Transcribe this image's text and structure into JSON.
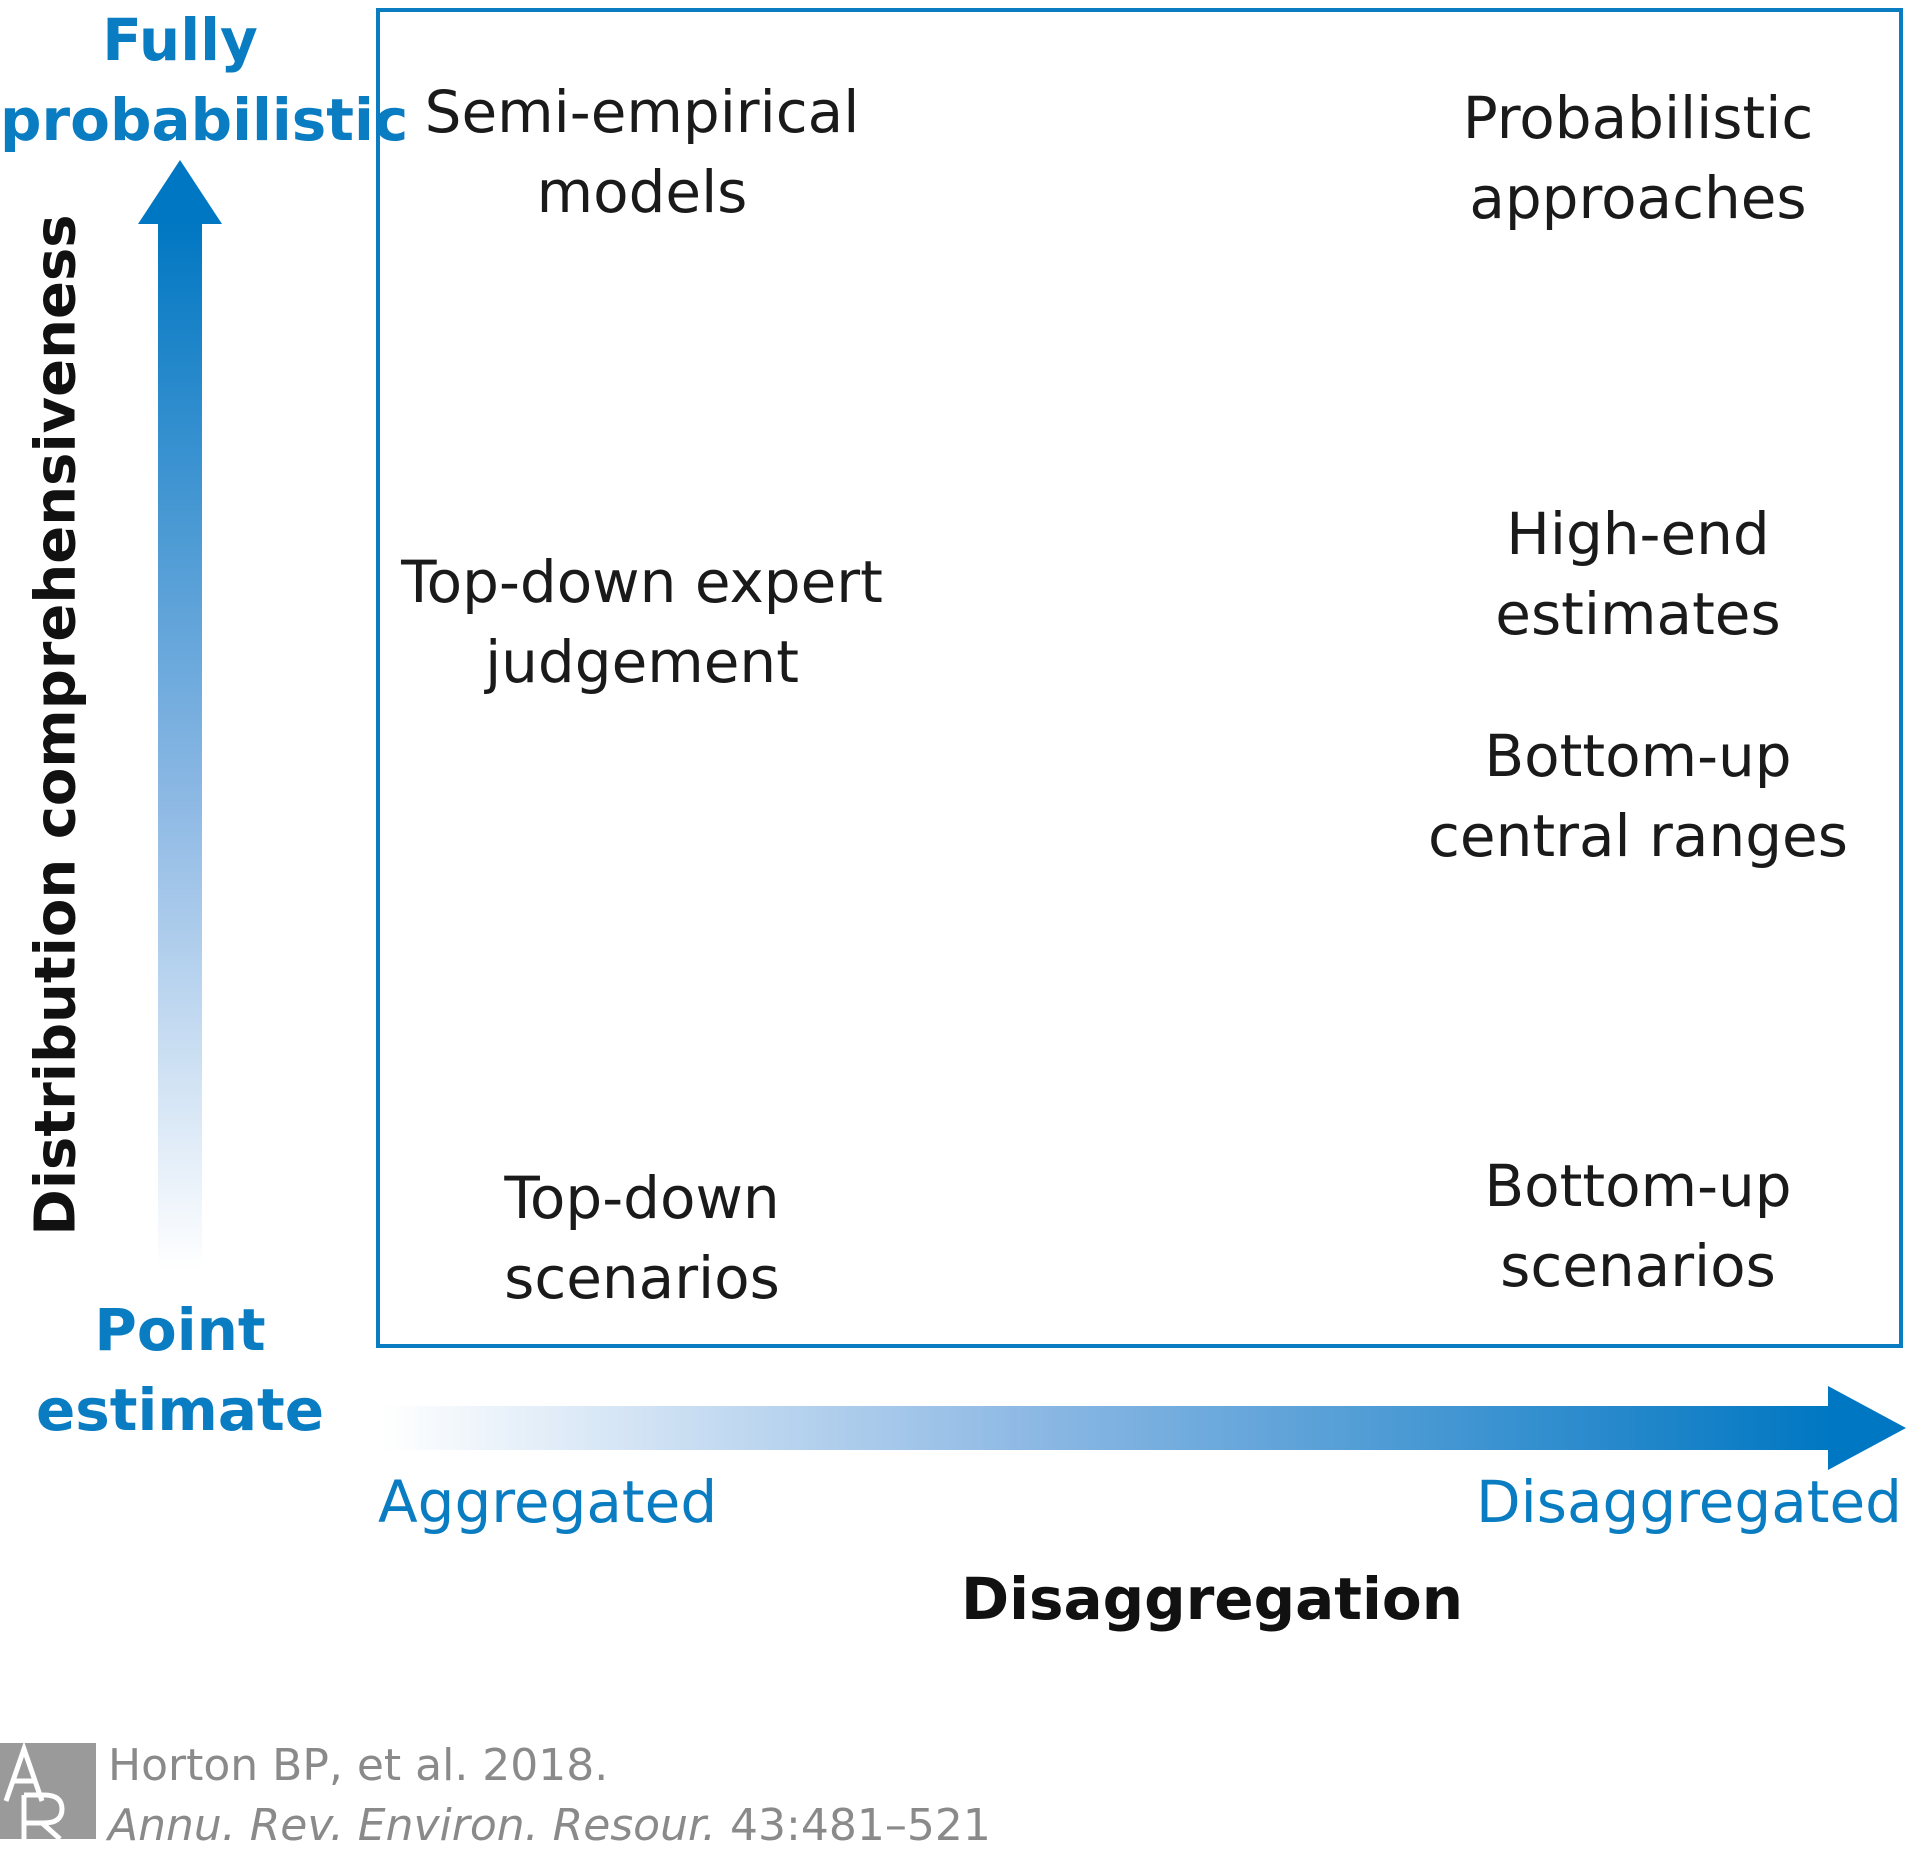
{
  "y_axis": {
    "title": "Distribution comprehensiveness",
    "top_label": "Fully\nprobabilistic",
    "bottom_label": "Point\nestimate"
  },
  "x_axis": {
    "title": "Disaggregation",
    "left_label": "Aggregated",
    "right_label": "Disaggregated"
  },
  "cells": {
    "semi_empirical": "Semi-empirical\nmodels",
    "probabilistic": "Probabilistic\napproaches",
    "top_down_expert": "Top-down expert\njudgement",
    "high_end": "High-end\nestimates",
    "bottom_up_central": "Bottom-up\ncentral ranges",
    "top_down_scenarios": "Top-down\nscenarios",
    "bottom_up_scenarios": "Bottom-up\nscenarios"
  },
  "citation": {
    "line1": "Horton BP, et al. 2018.",
    "journal": "Annu. Rev. Environ. Resour.",
    "pages": "43:481–521",
    "logo_letters": "AR"
  },
  "colors": {
    "accent": "#0a7cc1",
    "frame": "#0a7cc1",
    "text": "#1a1a1a",
    "citation": "#8a8a8a"
  }
}
